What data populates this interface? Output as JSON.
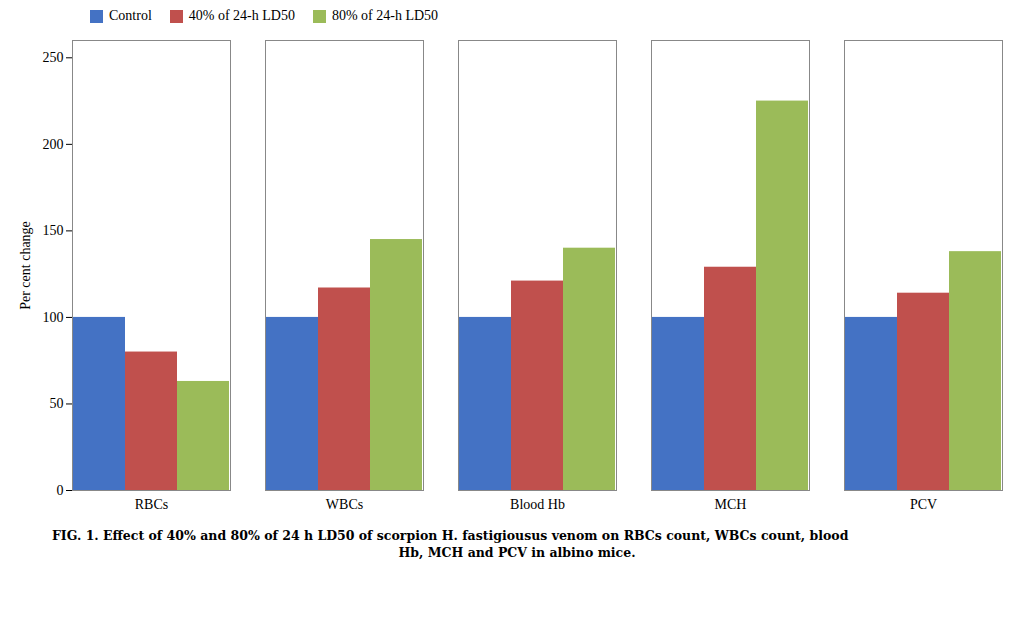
{
  "chart_data": {
    "type": "bar",
    "categories": [
      "RBCs",
      "WBCs",
      "Blood Hb",
      "MCH",
      "PCV"
    ],
    "series": [
      {
        "name": "Control",
        "color": "#4472C4",
        "values": [
          100,
          100,
          100,
          100,
          100
        ]
      },
      {
        "name": "40% of 24-h LD50",
        "color": "#C0504D",
        "values": [
          80,
          117,
          121,
          129,
          114
        ]
      },
      {
        "name": "80% of 24-h LD50",
        "color": "#9BBB59",
        "values": [
          63,
          145,
          140,
          225,
          138
        ]
      }
    ],
    "ylabel": "Per cent change",
    "ylim": [
      0,
      260
    ],
    "yticks": [
      0,
      50,
      100,
      150,
      200,
      250
    ],
    "grid": false,
    "legend": "upper left",
    "caption": [
      "FIG. 1. Effect of 40% and 80% of 24 h LD50 of scorpion H. fastigiousus venom on RBCs count, WBCs count, blood",
      "Hb, MCH and PCV in albino mice."
    ]
  }
}
